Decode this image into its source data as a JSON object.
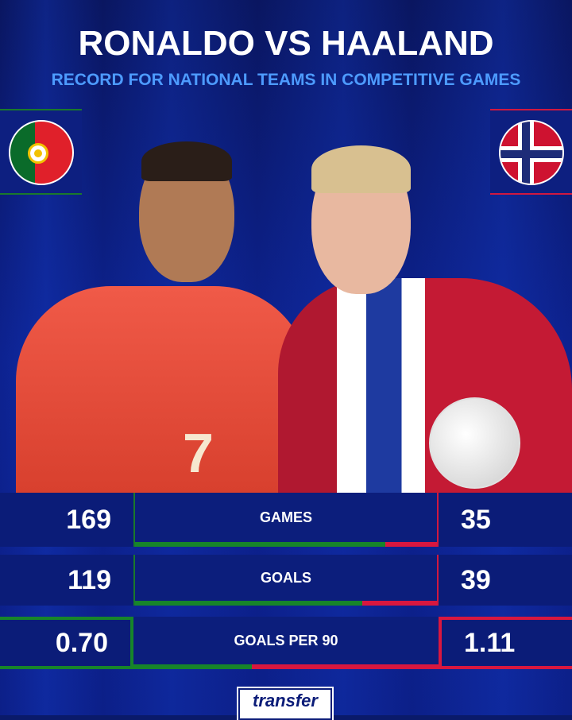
{
  "header": {
    "title": "RONALDO VS HAALAND",
    "subtitle": "RECORD FOR NATIONAL TEAMS IN COMPETITIVE GAMES"
  },
  "players": {
    "left": {
      "flag": "portugal-flag",
      "shirt_number": "7"
    },
    "right": {
      "flag": "norway-flag"
    }
  },
  "colors": {
    "left_accent": "#17852a",
    "right_accent": "#d8173f",
    "background": "#0a1a6a",
    "subtitle": "#4d9bff"
  },
  "stats": [
    {
      "label": "GAMES",
      "left": "169",
      "right": "35",
      "left_value": 169,
      "right_value": 35
    },
    {
      "label": "GOALS",
      "left": "119",
      "right": "39",
      "left_value": 119,
      "right_value": 39
    },
    {
      "label": "GOALS PER 90",
      "left": "0.70",
      "right": "1.11",
      "left_value": 0.7,
      "right_value": 1.11
    }
  ],
  "footer": {
    "logo": "transfermarkt"
  }
}
